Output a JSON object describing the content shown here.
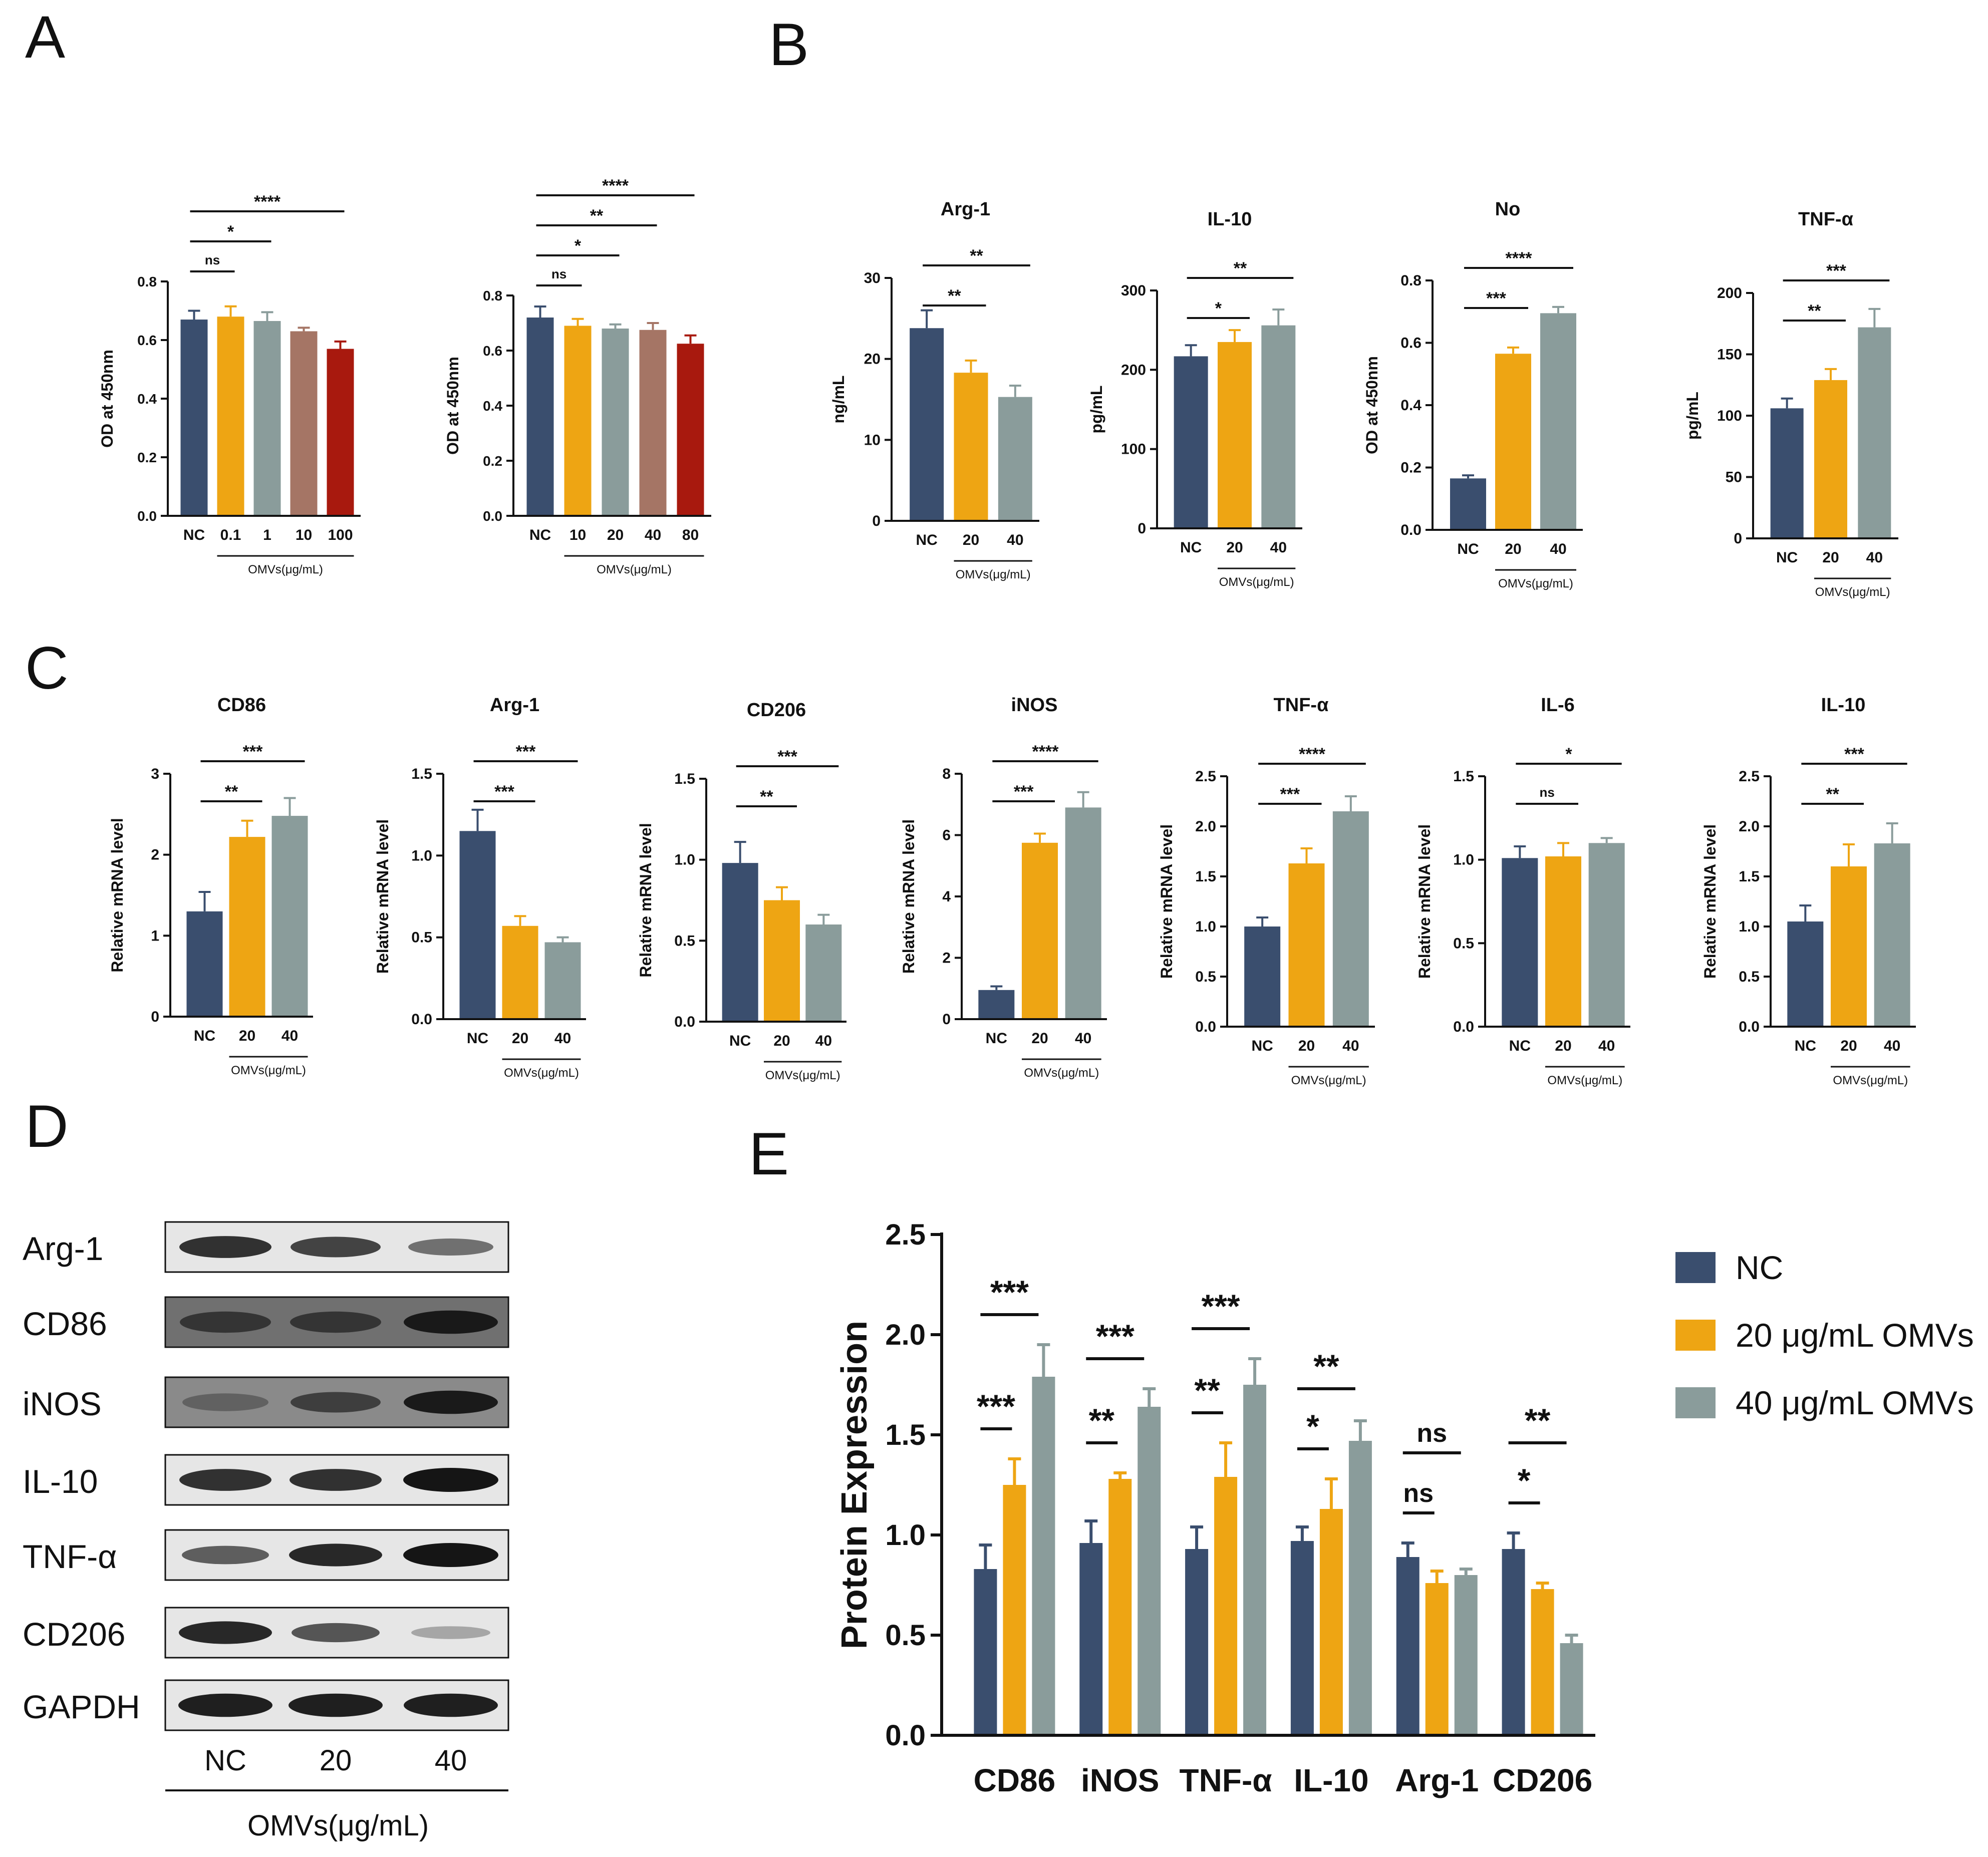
{
  "figure": {
    "panel_letters": [
      "A",
      "B",
      "C",
      "D",
      "E"
    ]
  },
  "colors": {
    "nc": "#3a4e6e",
    "orange": "#eea513",
    "gray": "#8a9c9b",
    "brown": "#a57565",
    "red": "#a8190e",
    "axis": "#111111"
  },
  "chart_data": [
    {
      "id": "A1",
      "panel": "A",
      "type": "bar",
      "title": "",
      "ylabel": "OD at 450nm",
      "ylim": [
        0,
        0.8
      ],
      "yticks": [
        "0.0",
        "0.2",
        "0.4",
        "0.6",
        "0.8"
      ],
      "tick_values": [
        0,
        0.2,
        0.4,
        0.6,
        0.8
      ],
      "categories": [
        "NC",
        "0.1",
        "1",
        "10",
        "100"
      ],
      "values": [
        0.67,
        0.68,
        0.665,
        0.63,
        0.57
      ],
      "errors": [
        0.03,
        0.035,
        0.03,
        0.012,
        0.025
      ],
      "bar_colors": [
        "nc",
        "orange",
        "gray",
        "brown",
        "red"
      ],
      "group_label": "OMVs(μg/mL)",
      "sig": [
        {
          "to": 1,
          "label": "ns"
        },
        {
          "to": 2,
          "label": "*"
        },
        {
          "to": 4,
          "label": "****"
        }
      ]
    },
    {
      "id": "A2",
      "panel": "A",
      "type": "bar",
      "title": "",
      "ylabel": "OD at 450nm",
      "ylim": [
        0,
        0.8
      ],
      "yticks": [
        "0.0",
        "0.2",
        "0.4",
        "0.6",
        "0.8"
      ],
      "tick_values": [
        0,
        0.2,
        0.4,
        0.6,
        0.8
      ],
      "categories": [
        "NC",
        "10",
        "20",
        "40",
        "80"
      ],
      "values": [
        0.72,
        0.69,
        0.68,
        0.675,
        0.625
      ],
      "errors": [
        0.04,
        0.025,
        0.015,
        0.025,
        0.03
      ],
      "bar_colors": [
        "nc",
        "orange",
        "gray",
        "brown",
        "red"
      ],
      "group_label": "OMVs(μg/mL)",
      "sig": [
        {
          "to": 1,
          "label": "ns"
        },
        {
          "to": 2,
          "label": "*"
        },
        {
          "to": 3,
          "label": "**"
        },
        {
          "to": 4,
          "label": "****"
        }
      ]
    },
    {
      "id": "B1",
      "panel": "B",
      "type": "bar",
      "title": "Arg-1",
      "ylabel": "ng/mL",
      "ylim": [
        0,
        30
      ],
      "yticks": [
        "0",
        "10",
        "20",
        "30"
      ],
      "tick_values": [
        0,
        10,
        20,
        30
      ],
      "categories": [
        "NC",
        "20",
        "40"
      ],
      "values": [
        23.8,
        18.3,
        15.3
      ],
      "errors": [
        2.2,
        1.5,
        1.4
      ],
      "bar_colors": [
        "nc",
        "orange",
        "gray"
      ],
      "group_label": "OMVs(μg/mL)",
      "sig": [
        {
          "to": 1,
          "label": "**"
        },
        {
          "to": 2,
          "label": "**"
        }
      ]
    },
    {
      "id": "B2",
      "panel": "B",
      "type": "bar",
      "title": "IL-10",
      "ylabel": "pg/mL",
      "ylim": [
        0,
        300
      ],
      "yticks": [
        "0",
        "100",
        "200",
        "300"
      ],
      "tick_values": [
        0,
        100,
        200,
        300
      ],
      "categories": [
        "NC",
        "20",
        "40"
      ],
      "values": [
        217,
        235,
        256
      ],
      "errors": [
        14,
        15,
        20
      ],
      "bar_colors": [
        "nc",
        "orange",
        "gray"
      ],
      "group_label": "OMVs(μg/mL)",
      "sig": [
        {
          "to": 1,
          "label": "*"
        },
        {
          "to": 2,
          "label": "**"
        }
      ]
    },
    {
      "id": "B3",
      "panel": "B",
      "type": "bar",
      "title": "No",
      "ylabel": "OD at 450nm",
      "ylim": [
        0,
        0.8
      ],
      "yticks": [
        "0.0",
        "0.2",
        "0.4",
        "0.6",
        "0.8"
      ],
      "tick_values": [
        0,
        0.2,
        0.4,
        0.6,
        0.8
      ],
      "categories": [
        "NC",
        "20",
        "40"
      ],
      "values": [
        0.165,
        0.565,
        0.695
      ],
      "errors": [
        0.01,
        0.02,
        0.02
      ],
      "bar_colors": [
        "nc",
        "orange",
        "gray"
      ],
      "group_label": "OMVs(μg/mL)",
      "sig": [
        {
          "to": 1,
          "label": "***"
        },
        {
          "to": 2,
          "label": "****"
        }
      ]
    },
    {
      "id": "B4",
      "panel": "B",
      "type": "bar",
      "title": "TNF-α",
      "ylabel": "pg/mL",
      "ylim": [
        0,
        200
      ],
      "yticks": [
        "0",
        "50",
        "100",
        "150",
        "200"
      ],
      "tick_values": [
        0,
        50,
        100,
        150,
        200
      ],
      "categories": [
        "NC",
        "20",
        "40"
      ],
      "values": [
        106,
        129,
        172
      ],
      "errors": [
        8,
        9,
        15
      ],
      "bar_colors": [
        "nc",
        "orange",
        "gray"
      ],
      "group_label": "OMVs(μg/mL)",
      "sig": [
        {
          "to": 1,
          "label": "**"
        },
        {
          "to": 2,
          "label": "***"
        }
      ]
    },
    {
      "id": "C1",
      "panel": "C",
      "type": "bar",
      "title": "CD86",
      "ylabel": "Relative mRNA level",
      "ylim": [
        0,
        3
      ],
      "yticks": [
        "0",
        "1",
        "2",
        "3"
      ],
      "tick_values": [
        0,
        1,
        2,
        3
      ],
      "categories": [
        "NC",
        "20",
        "40"
      ],
      "values": [
        1.3,
        2.22,
        2.48
      ],
      "errors": [
        0.24,
        0.2,
        0.22
      ],
      "bar_colors": [
        "nc",
        "orange",
        "gray"
      ],
      "group_label": "OMVs(μg/mL)",
      "sig": [
        {
          "to": 1,
          "label": "**"
        },
        {
          "to": 2,
          "label": "***"
        }
      ]
    },
    {
      "id": "C2",
      "panel": "C",
      "type": "bar",
      "title": "Arg-1",
      "ylabel": "Relative mRNA level",
      "ylim": [
        0,
        1.5
      ],
      "yticks": [
        "0.0",
        "0.5",
        "1.0",
        "1.5"
      ],
      "tick_values": [
        0,
        0.5,
        1,
        1.5
      ],
      "categories": [
        "NC",
        "20",
        "40"
      ],
      "values": [
        1.15,
        0.57,
        0.47
      ],
      "errors": [
        0.13,
        0.06,
        0.03
      ],
      "bar_colors": [
        "nc",
        "orange",
        "gray"
      ],
      "group_label": "OMVs(μg/mL)",
      "sig": [
        {
          "to": 1,
          "label": "***"
        },
        {
          "to": 2,
          "label": "***"
        }
      ]
    },
    {
      "id": "C3",
      "panel": "C",
      "type": "bar",
      "title": "CD206",
      "ylabel": "Relative mRNA level",
      "ylim": [
        0,
        1.5
      ],
      "yticks": [
        "0.0",
        "0.5",
        "1.0",
        "1.5"
      ],
      "tick_values": [
        0,
        0.5,
        1,
        1.5
      ],
      "categories": [
        "NC",
        "20",
        "40"
      ],
      "values": [
        0.98,
        0.75,
        0.6
      ],
      "errors": [
        0.13,
        0.08,
        0.06
      ],
      "bar_colors": [
        "nc",
        "orange",
        "gray"
      ],
      "group_label": "OMVs(μg/mL)",
      "sig": [
        {
          "to": 1,
          "label": "**"
        },
        {
          "to": 2,
          "label": "***"
        }
      ]
    },
    {
      "id": "C4",
      "panel": "C",
      "type": "bar",
      "title": "iNOS",
      "ylabel": "Relative mRNA level",
      "ylim": [
        0,
        8
      ],
      "yticks": [
        "0",
        "2",
        "4",
        "6",
        "8"
      ],
      "tick_values": [
        0,
        2,
        4,
        6,
        8
      ],
      "categories": [
        "NC",
        "20",
        "40"
      ],
      "values": [
        0.95,
        5.75,
        6.9
      ],
      "errors": [
        0.12,
        0.3,
        0.5
      ],
      "bar_colors": [
        "nc",
        "orange",
        "gray"
      ],
      "group_label": "OMVs(μg/mL)",
      "sig": [
        {
          "to": 1,
          "label": "***"
        },
        {
          "to": 2,
          "label": "****"
        }
      ]
    },
    {
      "id": "C5",
      "panel": "C",
      "type": "bar",
      "title": "TNF-α",
      "ylabel": "Relative mRNA level",
      "ylim": [
        0,
        2.5
      ],
      "yticks": [
        "0.0",
        "0.5",
        "1.0",
        "1.5",
        "2.0",
        "2.5"
      ],
      "tick_values": [
        0,
        0.5,
        1,
        1.5,
        2,
        2.5
      ],
      "categories": [
        "NC",
        "20",
        "40"
      ],
      "values": [
        1.0,
        1.63,
        2.15
      ],
      "errors": [
        0.09,
        0.15,
        0.15
      ],
      "bar_colors": [
        "nc",
        "orange",
        "gray"
      ],
      "group_label": "OMVs(μg/mL)",
      "sig": [
        {
          "to": 1,
          "label": "***"
        },
        {
          "to": 2,
          "label": "****"
        }
      ]
    },
    {
      "id": "C6",
      "panel": "C",
      "type": "bar",
      "title": "IL-6",
      "ylabel": "Relative mRNA level",
      "ylim": [
        0,
        1.5
      ],
      "yticks": [
        "0.0",
        "0.5",
        "1.0",
        "1.5"
      ],
      "tick_values": [
        0,
        0.5,
        1,
        1.5
      ],
      "categories": [
        "NC",
        "20",
        "40"
      ],
      "values": [
        1.01,
        1.02,
        1.1
      ],
      "errors": [
        0.07,
        0.08,
        0.03
      ],
      "bar_colors": [
        "nc",
        "orange",
        "gray"
      ],
      "group_label": "OMVs(μg/mL)",
      "sig": [
        {
          "to": 1,
          "label": "ns"
        },
        {
          "to": 2,
          "label": "*"
        }
      ]
    },
    {
      "id": "C7",
      "panel": "C",
      "type": "bar",
      "title": "IL-10",
      "ylabel": "Relative mRNA level",
      "ylim": [
        0,
        2.5
      ],
      "yticks": [
        "0.0",
        "0.5",
        "1.0",
        "1.5",
        "2.0",
        "2.5"
      ],
      "tick_values": [
        0,
        0.5,
        1,
        1.5,
        2,
        2.5
      ],
      "categories": [
        "NC",
        "20",
        "40"
      ],
      "values": [
        1.05,
        1.6,
        1.83
      ],
      "errors": [
        0.16,
        0.22,
        0.2
      ],
      "bar_colors": [
        "nc",
        "orange",
        "gray"
      ],
      "group_label": "OMVs(μg/mL)",
      "sig": [
        {
          "to": 1,
          "label": "**"
        },
        {
          "to": 2,
          "label": "***"
        }
      ]
    },
    {
      "id": "E",
      "panel": "E",
      "type": "bar",
      "title": "",
      "ylabel": "Protein Expression",
      "ylim": [
        0,
        2.5
      ],
      "yticks": [
        "0.0",
        "0.5",
        "1.0",
        "1.5",
        "2.0",
        "2.5"
      ],
      "tick_values": [
        0,
        0.5,
        1,
        1.5,
        2,
        2.5
      ],
      "categories": [
        "CD86",
        "iNOS",
        "TNF-α",
        "IL-10",
        "Arg-1",
        "CD206"
      ],
      "series": [
        {
          "name": "NC",
          "color": "nc",
          "values": [
            0.83,
            0.96,
            0.93,
            0.97,
            0.89,
            0.93
          ],
          "errors": [
            0.12,
            0.11,
            0.11,
            0.07,
            0.07,
            0.08
          ]
        },
        {
          "name": "20 μg/mL OMVs",
          "color": "orange",
          "values": [
            1.25,
            1.28,
            1.29,
            1.13,
            0.76,
            0.73
          ],
          "errors": [
            0.13,
            0.03,
            0.17,
            0.15,
            0.06,
            0.03
          ]
        },
        {
          "name": "40 μg/mL OMVs",
          "color": "gray",
          "values": [
            1.79,
            1.64,
            1.75,
            1.47,
            0.8,
            0.46
          ],
          "errors": [
            0.16,
            0.09,
            0.13,
            0.1,
            0.03,
            0.04
          ]
        }
      ],
      "sig_low": [
        "***",
        "**",
        "**",
        "*",
        "ns",
        "*"
      ],
      "sig_high": [
        "***",
        "***",
        "***",
        "**",
        "ns",
        "**"
      ],
      "legend_position": "right"
    }
  ],
  "western_blot": {
    "proteins": [
      "Arg-1",
      "CD86",
      "iNOS",
      "IL-10",
      "TNF-α",
      "CD206",
      "GAPDH"
    ],
    "lanes": [
      "NC",
      "20",
      "40"
    ],
    "group_label": "OMVs(μg/mL)",
    "band_intensity": [
      [
        0.85,
        0.75,
        0.5
      ],
      [
        0.8,
        0.8,
        0.95
      ],
      [
        0.55,
        0.75,
        0.95
      ],
      [
        0.85,
        0.85,
        1.0
      ],
      [
        0.6,
        0.9,
        1.0
      ],
      [
        0.9,
        0.65,
        0.2
      ],
      [
        0.95,
        0.95,
        0.95
      ]
    ]
  }
}
